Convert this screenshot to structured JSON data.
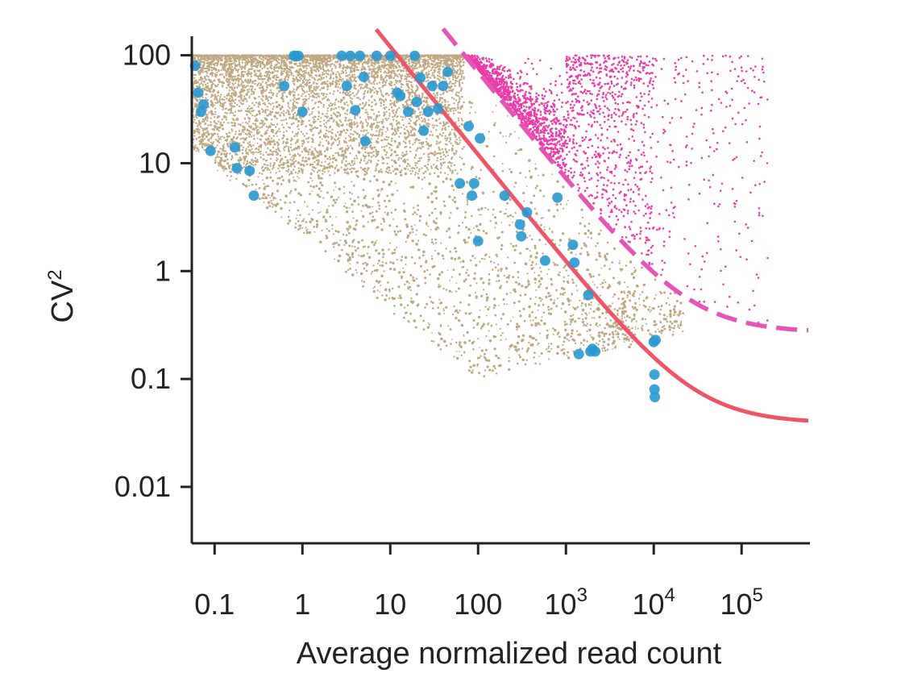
{
  "chart_data": {
    "type": "scatter",
    "x_scale": "log",
    "y_scale": "log",
    "xlim": [
      0.055,
      600000
    ],
    "ylim": [
      0.003,
      150
    ],
    "grid": false,
    "xlabel": "Average normalized read count",
    "ylabel": {
      "base": "CV",
      "superscript": "2"
    },
    "x_ticks": [
      {
        "value": 0.1,
        "label": "0.1"
      },
      {
        "value": 1,
        "label": "1"
      },
      {
        "value": 10,
        "label": "10"
      },
      {
        "value": 100,
        "label": "100"
      },
      {
        "value": 1000,
        "base": "10",
        "exp": "3"
      },
      {
        "value": 10000,
        "base": "10",
        "exp": "4"
      },
      {
        "value": 100000,
        "base": "10",
        "exp": "5"
      }
    ],
    "y_ticks": [
      {
        "value": 100,
        "label": "100"
      },
      {
        "value": 10,
        "label": "10"
      },
      {
        "value": 1,
        "label": "1"
      },
      {
        "value": 0.1,
        "label": "0.1"
      },
      {
        "value": 0.01,
        "label": "0.01"
      }
    ],
    "colors": {
      "background_genes": "#8b5e1a",
      "high_variance_genes": "#e8199a",
      "highlighted_genes": "#2a98cf",
      "technical_noise_fit": "#ee5566",
      "significance_threshold": "#e455b5",
      "axis": "#222222"
    },
    "series": [
      {
        "style": "dense cloud of small points",
        "color_key": "background_genes",
        "description": "bulk of genes; upper edge at CV2 = 100, lower edge falling from ~10 at x=0.1 to ~0.1 at x=100, extending to ~2e4"
      },
      {
        "style": "small points above dashed threshold",
        "color_key": "high_variance_genes",
        "description": "genes above the dashed curve, x from ~50 to ~2e5"
      },
      {
        "style": "larger highlighted points",
        "color_key": "highlighted_genes",
        "points": [
          {
            "x": 0.06,
            "y": 80
          },
          {
            "x": 0.065,
            "y": 45
          },
          {
            "x": 0.07,
            "y": 30
          },
          {
            "x": 0.075,
            "y": 35
          },
          {
            "x": 0.09,
            "y": 13
          },
          {
            "x": 0.17,
            "y": 14
          },
          {
            "x": 0.18,
            "y": 9
          },
          {
            "x": 0.25,
            "y": 8.5
          },
          {
            "x": 0.28,
            "y": 5
          },
          {
            "x": 0.62,
            "y": 52
          },
          {
            "x": 0.8,
            "y": 99
          },
          {
            "x": 0.85,
            "y": 98
          },
          {
            "x": 0.9,
            "y": 99
          },
          {
            "x": 1.0,
            "y": 30
          },
          {
            "x": 2.8,
            "y": 99
          },
          {
            "x": 3.2,
            "y": 52
          },
          {
            "x": 3.5,
            "y": 99
          },
          {
            "x": 4.0,
            "y": 31
          },
          {
            "x": 4.5,
            "y": 99
          },
          {
            "x": 5.0,
            "y": 63
          },
          {
            "x": 5.2,
            "y": 16
          },
          {
            "x": 7,
            "y": 99
          },
          {
            "x": 10,
            "y": 99
          },
          {
            "x": 12,
            "y": 45
          },
          {
            "x": 13,
            "y": 42
          },
          {
            "x": 16,
            "y": 30
          },
          {
            "x": 19,
            "y": 99
          },
          {
            "x": 20,
            "y": 37
          },
          {
            "x": 22,
            "y": 62
          },
          {
            "x": 24,
            "y": 20
          },
          {
            "x": 27,
            "y": 30
          },
          {
            "x": 30,
            "y": 52
          },
          {
            "x": 35,
            "y": 32
          },
          {
            "x": 40,
            "y": 52
          },
          {
            "x": 45,
            "y": 70
          },
          {
            "x": 62,
            "y": 6.5
          },
          {
            "x": 78,
            "y": 22
          },
          {
            "x": 85,
            "y": 5
          },
          {
            "x": 90,
            "y": 6.5
          },
          {
            "x": 105,
            "y": 17
          },
          {
            "x": 100,
            "y": 1.9
          },
          {
            "x": 200,
            "y": 5
          },
          {
            "x": 300,
            "y": 2.7
          },
          {
            "x": 310,
            "y": 2.1
          },
          {
            "x": 360,
            "y": 3.5
          },
          {
            "x": 580,
            "y": 1.25
          },
          {
            "x": 800,
            "y": 4.8
          },
          {
            "x": 1200,
            "y": 1.75
          },
          {
            "x": 1250,
            "y": 1.2
          },
          {
            "x": 1400,
            "y": 0.17
          },
          {
            "x": 1800,
            "y": 0.6
          },
          {
            "x": 1900,
            "y": 0.18
          },
          {
            "x": 2000,
            "y": 0.19
          },
          {
            "x": 2150,
            "y": 0.18
          },
          {
            "x": 10000,
            "y": 0.22
          },
          {
            "x": 10500,
            "y": 0.23
          },
          {
            "x": 10200,
            "y": 0.11
          },
          {
            "x": 10200,
            "y": 0.08
          },
          {
            "x": 10300,
            "y": 0.068
          }
        ]
      },
      {
        "style": "solid line",
        "color_key": "technical_noise_fit",
        "model": "y = a / x + b",
        "a": 1200,
        "b": 0.039
      },
      {
        "style": "dashed line",
        "color_key": "significance_threshold",
        "model": "y = a / x + b",
        "a": 7000,
        "b": 0.27
      }
    ]
  }
}
